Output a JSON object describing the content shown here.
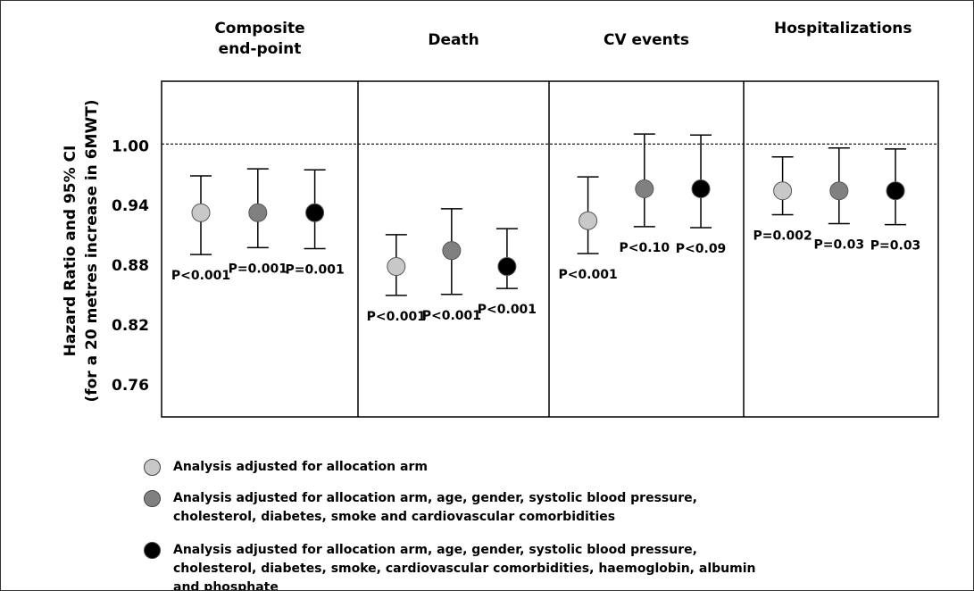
{
  "chart_data": {
    "type": "errorbar",
    "y_label": [
      "Hazard Ratio and 95% CI",
      "(for a 20 metres increase in 6MWT)"
    ],
    "categories": [
      "Composite end-point",
      "Death",
      "CV events",
      "Hospitalizations"
    ],
    "ylim": [
      0.726,
      1.063
    ],
    "yticks": [
      {
        "value": 1,
        "label": "1.00"
      },
      0.94,
      0.88,
      0.82,
      0.76
    ],
    "ref_line": 1,
    "series": [
      {
        "name": "Analysis adjusted for allocation arm",
        "color": "#c8c8c8",
        "values": [
          0.931,
          0.877,
          0.923,
          0.953
        ],
        "lower": [
          0.889,
          0.848,
          0.89,
          0.929
        ],
        "upper": [
          0.968,
          0.909,
          0.967,
          0.987
        ],
        "p_labels": [
          "P<0.001",
          "P<0.001",
          "P<0.001",
          "P=0.002"
        ]
      },
      {
        "name": "Analysis adjusted for allocation arm, age, gender, systolic blood pressure, cholesterol, diabetes, smoke and cardiovascular comorbidities",
        "color": "#808080",
        "values": [
          0.931,
          0.893,
          0.955,
          0.953
        ],
        "lower": [
          0.896,
          0.849,
          0.917,
          0.92
        ],
        "upper": [
          0.975,
          0.935,
          1.01,
          0.996
        ],
        "p_labels": [
          "P=0.001",
          "P<0.001",
          "P<0.10",
          "P=0.03"
        ]
      },
      {
        "name": "Analysis adjusted for allocation arm, age, gender, systolic blood pressure, cholesterol, diabetes, smoke, cardiovascular comorbidities, haemoglobin, albumin and phosphate",
        "color": "#000000",
        "values": [
          0.931,
          0.877,
          0.955,
          0.953
        ],
        "lower": [
          0.895,
          0.855,
          0.916,
          0.919
        ],
        "upper": [
          0.974,
          0.915,
          1.009,
          0.995
        ],
        "p_labels": [
          "P=0.001",
          "P<0.001",
          "P<0.09",
          "P=0.03"
        ]
      }
    ]
  }
}
